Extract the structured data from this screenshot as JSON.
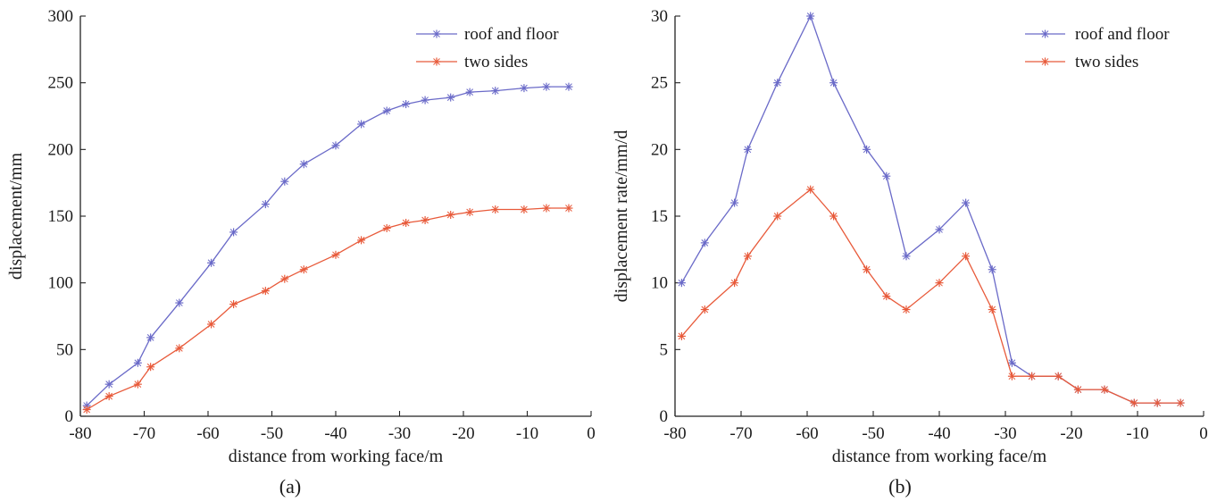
{
  "chart_data": [
    {
      "type": "line",
      "panel": "(a)",
      "xlabel": "distance from working face/m",
      "ylabel": "displacement/mm",
      "xlim": [
        -80,
        0
      ],
      "ylim": [
        0,
        300
      ],
      "xticks": [
        -80,
        -70,
        -60,
        -50,
        -40,
        -30,
        -20,
        -10,
        0
      ],
      "yticks": [
        0,
        50,
        100,
        150,
        200,
        250,
        300
      ],
      "grid": false,
      "legend_position": "top-right",
      "series": [
        {
          "name": "roof and floor",
          "color": "#6a6ac8",
          "x": [
            -79,
            -75.5,
            -71,
            -69,
            -64.5,
            -59.5,
            -56,
            -51,
            -48,
            -45,
            -40,
            -36,
            -32,
            -29,
            -26,
            -22,
            -19,
            -15,
            -10.5,
            -7,
            -3.5
          ],
          "y": [
            8,
            24,
            40,
            59,
            85,
            115,
            138,
            159,
            176,
            189,
            203,
            219,
            229,
            234,
            237,
            239,
            243,
            244,
            246,
            247,
            247
          ]
        },
        {
          "name": "two sides",
          "color": "#e85a3a",
          "x": [
            -79,
            -75.5,
            -71,
            -69,
            -64.5,
            -59.5,
            -56,
            -51,
            -48,
            -45,
            -40,
            -36,
            -32,
            -29,
            -26,
            -22,
            -19,
            -15,
            -10.5,
            -7,
            -3.5
          ],
          "y": [
            5,
            15,
            24,
            37,
            51,
            69,
            84,
            94,
            103,
            110,
            121,
            132,
            141,
            145,
            147,
            151,
            153,
            155,
            155,
            156,
            156
          ]
        }
      ]
    },
    {
      "type": "line",
      "panel": "(b)",
      "xlabel": "distance from working face/m",
      "ylabel": "displacement rate/mm/d",
      "xlim": [
        -80,
        0
      ],
      "ylim": [
        0,
        30
      ],
      "xticks": [
        -80,
        -70,
        -60,
        -50,
        -40,
        -30,
        -20,
        -10,
        0
      ],
      "yticks": [
        0,
        5,
        10,
        15,
        20,
        25,
        30
      ],
      "grid": false,
      "legend_position": "top-right",
      "series": [
        {
          "name": "roof and floor",
          "color": "#6a6ac8",
          "x": [
            -79,
            -75.5,
            -71,
            -69,
            -64.5,
            -59.5,
            -56,
            -51,
            -48,
            -45,
            -40,
            -36,
            -32,
            -29,
            -26,
            -22,
            -19,
            -15,
            -10.5,
            -7,
            -3.5
          ],
          "y": [
            10,
            13,
            16,
            20,
            25,
            30,
            25,
            20,
            18,
            12,
            14,
            16,
            11,
            4,
            3,
            3,
            2,
            2,
            1,
            1,
            1
          ]
        },
        {
          "name": "two sides",
          "color": "#e85a3a",
          "x": [
            -79,
            -75.5,
            -71,
            -69,
            -64.5,
            -59.5,
            -56,
            -51,
            -48,
            -45,
            -40,
            -36,
            -32,
            -29,
            -26,
            -22,
            -19,
            -15,
            -10.5,
            -7,
            -3.5
          ],
          "y": [
            6,
            8,
            10,
            12,
            15,
            17,
            15,
            11,
            9,
            8,
            10,
            12,
            8,
            3,
            3,
            3,
            2,
            2,
            1,
            1,
            1
          ]
        }
      ]
    }
  ]
}
